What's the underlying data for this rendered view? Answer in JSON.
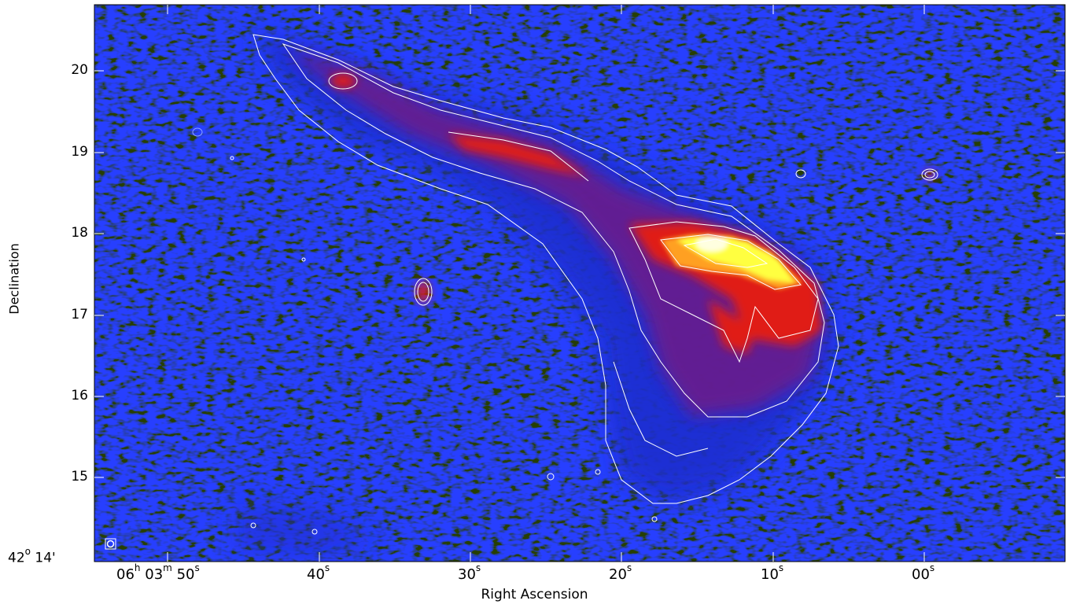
{
  "axes": {
    "xlabel": "Right Ascension",
    "ylabel": "Declination",
    "y_ticks": [
      "20",
      "19",
      "18",
      "17",
      "16",
      "15"
    ],
    "y_first_tick": {
      "deg": "42",
      "deg_unit": "o",
      "min": "14",
      "min_unit": "'"
    },
    "x_first_tick": {
      "h": "06",
      "h_unit": "h",
      "m": "03",
      "m_unit": "m",
      "s": "50",
      "s_unit": "s"
    },
    "x_ticks": [
      {
        "value": "40",
        "unit": "s"
      },
      {
        "value": "30",
        "unit": "s"
      },
      {
        "value": "20",
        "unit": "s"
      },
      {
        "value": "10",
        "unit": "s"
      },
      {
        "value": "00",
        "unit": "s"
      }
    ]
  },
  "colors": {
    "background": "#000000",
    "noise": "#0a1a8a",
    "emission_blue": "#1030e0",
    "emission_purple": "#6a1a8a",
    "emission_red": "#e01010",
    "emission_yellow": "#ffff40",
    "contour": "#ffffff"
  },
  "beam_marker": "beam-ellipse"
}
